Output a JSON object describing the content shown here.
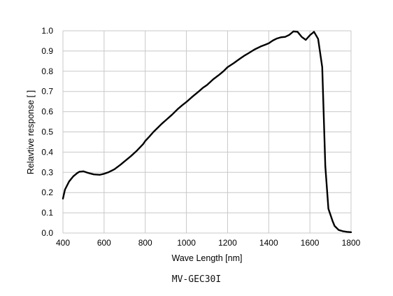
{
  "caption": "MV-GEC30I",
  "chart_data": {
    "type": "line",
    "xlabel": "Wave Length [nm]",
    "ylabel": "Relavtive response [ ]",
    "xlim": [
      400,
      1800
    ],
    "ylim": [
      0,
      1.0
    ],
    "x_ticks": [
      "400",
      "600",
      "800",
      "1000",
      "1200",
      "1400",
      "1600",
      "1800"
    ],
    "y_ticks": [
      "0.0",
      "0.1",
      "0.2",
      "0.3",
      "0.4",
      "0.5",
      "0.6",
      "0.7",
      "0.8",
      "0.9",
      "1.0"
    ],
    "grid": true,
    "line_color": "#000000",
    "grid_color": "#c8c8c8",
    "series": [
      {
        "x": [
          400,
          410,
          430,
          450,
          470,
          480,
          500,
          520,
          550,
          580,
          600,
          620,
          650,
          680,
          700,
          730,
          760,
          790,
          800,
          820,
          840,
          860,
          880,
          900,
          930,
          960,
          980,
          1000,
          1030,
          1060,
          1080,
          1100,
          1130,
          1160,
          1180,
          1200,
          1230,
          1260,
          1280,
          1300,
          1330,
          1360,
          1380,
          1400,
          1420,
          1440,
          1460,
          1480,
          1500,
          1520,
          1540,
          1560,
          1580,
          1600,
          1620,
          1640,
          1660,
          1675,
          1690,
          1710,
          1720,
          1740,
          1760,
          1780,
          1800
        ],
        "y": [
          0.17,
          0.215,
          0.255,
          0.28,
          0.297,
          0.303,
          0.305,
          0.298,
          0.29,
          0.288,
          0.293,
          0.3,
          0.315,
          0.338,
          0.355,
          0.38,
          0.408,
          0.44,
          0.455,
          0.477,
          0.5,
          0.52,
          0.54,
          0.558,
          0.585,
          0.615,
          0.632,
          0.648,
          0.675,
          0.7,
          0.718,
          0.732,
          0.76,
          0.783,
          0.8,
          0.82,
          0.84,
          0.862,
          0.876,
          0.888,
          0.907,
          0.922,
          0.93,
          0.938,
          0.952,
          0.962,
          0.968,
          0.97,
          0.98,
          0.997,
          0.995,
          0.97,
          0.955,
          0.978,
          0.995,
          0.96,
          0.82,
          0.33,
          0.12,
          0.06,
          0.035,
          0.015,
          0.009,
          0.006,
          0.004
        ]
      }
    ]
  }
}
